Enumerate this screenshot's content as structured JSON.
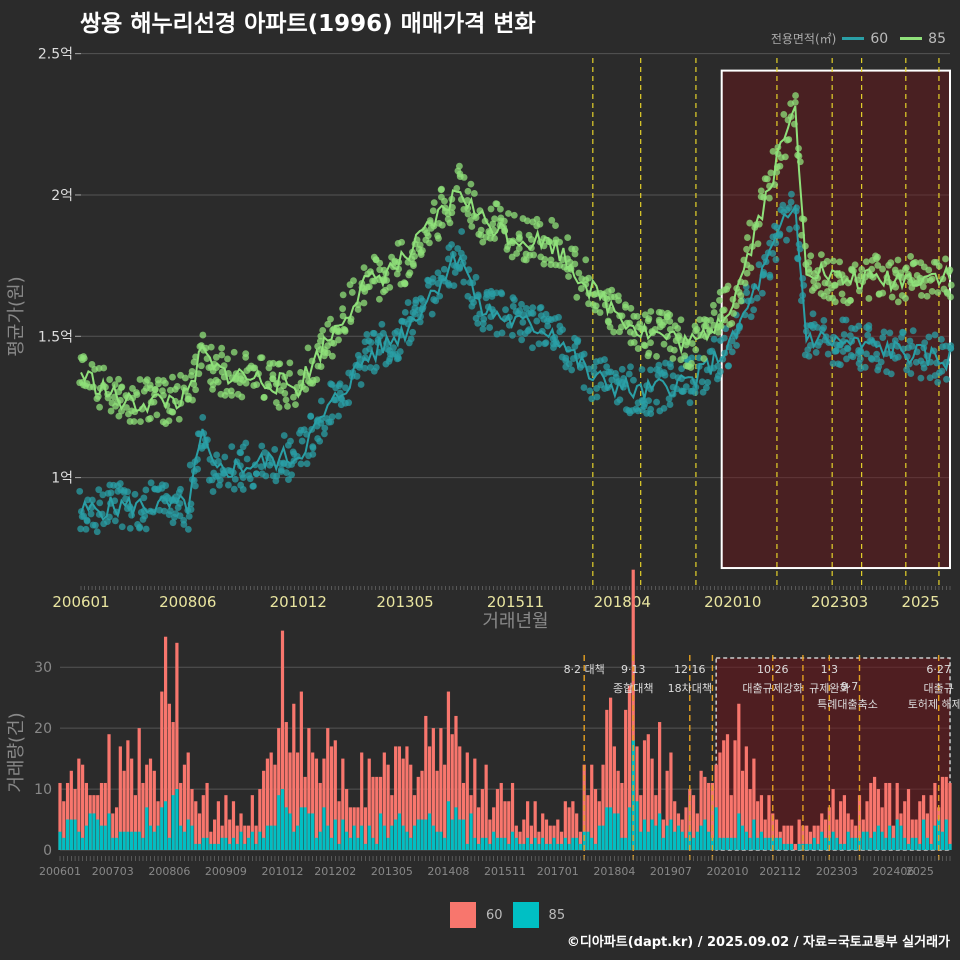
{
  "title": "쌍용 해누리선경 아파트(1996) 매매가격 변화",
  "footer": "©디아파트(dapt.kr) / 2025.09.02 / 자료=국토교통부 실거래가",
  "legend": {
    "title": "전용면적(㎡)",
    "items": [
      {
        "name": "60",
        "line_color": "#2a9fa6",
        "bar_color": "#f8766d"
      },
      {
        "name": "85",
        "line_color": "#8fe07a",
        "bar_color": "#00bfc4"
      }
    ]
  },
  "chart_data": [
    {
      "type": "line",
      "xlabel": "거래년월",
      "ylabel": "평균가(원)",
      "ylim": [
        0.62,
        2.52
      ],
      "x_ticks": [
        "200601",
        "200806",
        "201012",
        "201305",
        "201511",
        "201804",
        "202010",
        "202303",
        "2025"
      ],
      "y_ticks": [
        "1억",
        "1.5억",
        "2억",
        "2.5억"
      ],
      "policy_lines": [
        "2017-08",
        "2018-09",
        "2019-12",
        "2021-10",
        "2023-01",
        "2023-09",
        "2024-09",
        "2025-06"
      ],
      "highlight_box": {
        "from": "2020-07",
        "to": "2025-09",
        "ymin": 0.68,
        "ymax": 2.44
      },
      "series": [
        {
          "name": "60",
          "anchors": [
            [
              "2006-01",
              0.88
            ],
            [
              "2007-01",
              0.9
            ],
            [
              "2008-06",
              0.9
            ],
            [
              "2008-10",
              1.15
            ],
            [
              "2009-01",
              1.02
            ],
            [
              "2010-12",
              1.08
            ],
            [
              "2011-06",
              1.2
            ],
            [
              "2012-06",
              1.42
            ],
            [
              "2013-05",
              1.52
            ],
            [
              "2014-08",
              1.8
            ],
            [
              "2015-01",
              1.6
            ],
            [
              "2015-11",
              1.55
            ],
            [
              "2016-09",
              1.52
            ],
            [
              "2017-08",
              1.35
            ],
            [
              "2018-09",
              1.3
            ],
            [
              "2019-12",
              1.35
            ],
            [
              "2020-10",
              1.48
            ],
            [
              "2021-06",
              1.72
            ],
            [
              "2021-12",
              1.9
            ],
            [
              "2022-03",
              1.95
            ],
            [
              "2022-06",
              1.5
            ],
            [
              "2023-03",
              1.48
            ],
            [
              "2024-06",
              1.45
            ],
            [
              "2025-06",
              1.42
            ]
          ]
        },
        {
          "name": "85",
          "anchors": [
            [
              "2006-01",
              1.37
            ],
            [
              "2007-01",
              1.26
            ],
            [
              "2008-06",
              1.28
            ],
            [
              "2008-10",
              1.45
            ],
            [
              "2009-01",
              1.38
            ],
            [
              "2010-12",
              1.32
            ],
            [
              "2011-06",
              1.45
            ],
            [
              "2012-06",
              1.68
            ],
            [
              "2013-05",
              1.77
            ],
            [
              "2014-08",
              2.02
            ],
            [
              "2015-01",
              1.92
            ],
            [
              "2015-11",
              1.85
            ],
            [
              "2016-09",
              1.83
            ],
            [
              "2017-08",
              1.66
            ],
            [
              "2018-09",
              1.52
            ],
            [
              "2019-12",
              1.47
            ],
            [
              "2020-10",
              1.62
            ],
            [
              "2021-06",
              1.95
            ],
            [
              "2021-12",
              2.2
            ],
            [
              "2022-03",
              2.3
            ],
            [
              "2022-06",
              1.75
            ],
            [
              "2023-03",
              1.7
            ],
            [
              "2024-06",
              1.7
            ],
            [
              "2025-06",
              1.72
            ]
          ]
        }
      ]
    },
    {
      "type": "bar",
      "ylabel": "거래량(건)",
      "ylim": [
        0,
        32
      ],
      "x_ticks": [
        "200601",
        "200703",
        "200806",
        "200909",
        "201012",
        "201202",
        "201305",
        "201408",
        "201511",
        "201701",
        "201804",
        "201907",
        "202010",
        "202112",
        "202303",
        "202406",
        "2025"
      ],
      "y_ticks": [
        "0",
        "10",
        "20",
        "30"
      ],
      "policy_lines": [
        "2017-08",
        "2018-09",
        "2019-12",
        "2020-06",
        "2021-10",
        "2022-06",
        "2023-01",
        "2023-09",
        "2025-06"
      ],
      "highlight_box": {
        "from": "2020-07",
        "to": "2025-09"
      },
      "annotations": [
        {
          "x": "2017-08",
          "line1": "8·2 대책",
          "line2": ""
        },
        {
          "x": "2018-09",
          "line1": "9·13",
          "line2": "종합대책"
        },
        {
          "x": "2019-12",
          "line1": "12·16",
          "line2": "18차대책"
        },
        {
          "x": "2021-10",
          "line1": "10·26",
          "line2": "대출규제강화"
        },
        {
          "x": "2023-01",
          "line1": "1·3",
          "line2": "규제완화"
        },
        {
          "x": "2023-09",
          "line1": "",
          "line2": "9·7"
        },
        {
          "x": "2023-09",
          "line1": "",
          "line2": "특례대출축소"
        },
        {
          "x": "2024-09",
          "line1": "",
          "line2": "토허제 해제"
        },
        {
          "x": "2025-06",
          "line1": "6·27",
          "line2": "대출규"
        }
      ],
      "series": [
        {
          "name": "60",
          "anchors": [
            [
              "2006-01",
              5
            ],
            [
              "2006-06",
              8
            ],
            [
              "2007-06",
              9
            ],
            [
              "2008-06",
              14
            ],
            [
              "2009-01",
              6
            ],
            [
              "2010-06",
              5
            ],
            [
              "2010-12",
              14
            ],
            [
              "2011-06",
              12
            ],
            [
              "2012-06",
              7
            ],
            [
              "2013-05",
              9
            ],
            [
              "2014-08",
              12
            ],
            [
              "2015-11",
              5
            ],
            [
              "2017-01",
              3
            ],
            [
              "2018-09",
              14
            ],
            [
              "2019-12",
              4
            ],
            [
              "2020-10",
              14
            ],
            [
              "2021-06",
              8
            ],
            [
              "2022-03",
              2
            ],
            [
              "2023-03",
              5
            ],
            [
              "2024-06",
              6
            ],
            [
              "2025-06",
              6
            ]
          ]
        },
        {
          "name": "85",
          "anchors": [
            [
              "2006-01",
              3
            ],
            [
              "2006-06",
              4
            ],
            [
              "2007-06",
              3
            ],
            [
              "2008-06",
              6
            ],
            [
              "2009-01",
              2
            ],
            [
              "2010-06",
              2
            ],
            [
              "2010-12",
              6
            ],
            [
              "2011-06",
              5
            ],
            [
              "2012-06",
              3
            ],
            [
              "2013-05",
              4
            ],
            [
              "2014-08",
              5
            ],
            [
              "2015-11",
              2
            ],
            [
              "2017-01",
              1
            ],
            [
              "2018-09",
              6
            ],
            [
              "2019-12",
              2
            ],
            [
              "2020-10",
              5
            ],
            [
              "2021-06",
              3
            ],
            [
              "2022-03",
              1
            ],
            [
              "2023-03",
              2
            ],
            [
              "2024-06",
              3
            ],
            [
              "2025-06",
              3
            ]
          ]
        }
      ]
    }
  ]
}
